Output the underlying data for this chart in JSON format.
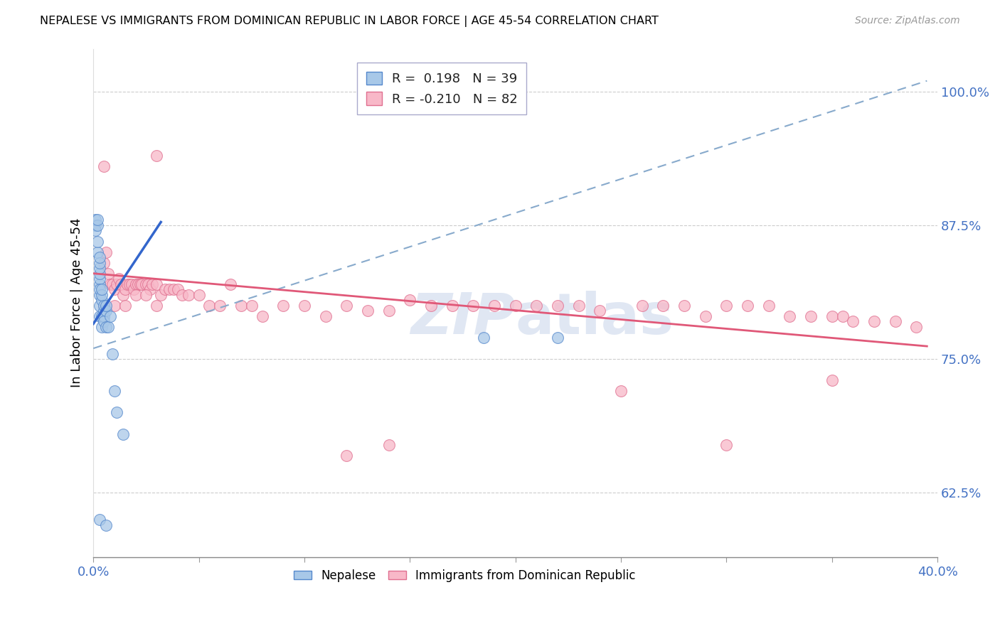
{
  "title": "NEPALESE VS IMMIGRANTS FROM DOMINICAN REPUBLIC IN LABOR FORCE | AGE 45-54 CORRELATION CHART",
  "source": "Source: ZipAtlas.com",
  "ylabel": "In Labor Force | Age 45-54",
  "ytick_labels": [
    "62.5%",
    "75.0%",
    "87.5%",
    "100.0%"
  ],
  "ytick_values": [
    0.625,
    0.75,
    0.875,
    1.0
  ],
  "xmin": 0.0,
  "xmax": 0.4,
  "ymin": 0.565,
  "ymax": 1.04,
  "legend_line1": "R =  0.198   N = 39",
  "legend_line2": "R = -0.210   N = 82",
  "color_blue_fill": "#a8c8e8",
  "color_blue_edge": "#5588cc",
  "color_pink_fill": "#f8b8c8",
  "color_pink_edge": "#e07090",
  "color_blue_line": "#3366cc",
  "color_pink_line": "#e05878",
  "color_dashed": "#88aacc",
  "color_axis_blue": "#4472c4",
  "color_grid": "#cccccc",
  "watermark_color": "#ccd8ec",
  "nepalese_x": [
    0.001,
    0.001,
    0.001,
    0.002,
    0.002,
    0.002,
    0.002,
    0.003,
    0.003,
    0.003,
    0.003,
    0.003,
    0.003,
    0.003,
    0.003,
    0.003,
    0.003,
    0.004,
    0.004,
    0.004,
    0.004,
    0.004,
    0.005,
    0.005,
    0.005,
    0.005,
    0.006,
    0.006,
    0.006,
    0.007,
    0.008,
    0.009,
    0.01,
    0.011,
    0.014,
    0.185,
    0.22,
    0.003,
    0.006
  ],
  "nepalese_y": [
    0.875,
    0.88,
    0.87,
    0.875,
    0.88,
    0.85,
    0.86,
    0.82,
    0.825,
    0.83,
    0.835,
    0.84,
    0.845,
    0.81,
    0.815,
    0.79,
    0.8,
    0.805,
    0.81,
    0.815,
    0.79,
    0.78,
    0.795,
    0.8,
    0.79,
    0.785,
    0.795,
    0.8,
    0.78,
    0.78,
    0.79,
    0.755,
    0.72,
    0.7,
    0.68,
    0.77,
    0.77,
    0.6,
    0.595
  ],
  "dominican_x": [
    0.005,
    0.006,
    0.007,
    0.008,
    0.009,
    0.01,
    0.011,
    0.012,
    0.013,
    0.014,
    0.015,
    0.016,
    0.017,
    0.018,
    0.019,
    0.02,
    0.021,
    0.022,
    0.023,
    0.025,
    0.026,
    0.027,
    0.028,
    0.03,
    0.032,
    0.034,
    0.036,
    0.038,
    0.04,
    0.042,
    0.045,
    0.05,
    0.055,
    0.06,
    0.065,
    0.07,
    0.075,
    0.08,
    0.09,
    0.1,
    0.11,
    0.12,
    0.13,
    0.14,
    0.15,
    0.16,
    0.17,
    0.18,
    0.19,
    0.2,
    0.21,
    0.22,
    0.23,
    0.24,
    0.26,
    0.27,
    0.28,
    0.29,
    0.3,
    0.31,
    0.32,
    0.33,
    0.34,
    0.35,
    0.355,
    0.36,
    0.37,
    0.38,
    0.39,
    0.005,
    0.01,
    0.015,
    0.02,
    0.025,
    0.03,
    0.12,
    0.14,
    0.25,
    0.3,
    0.35,
    0.005,
    0.03
  ],
  "dominican_y": [
    0.84,
    0.85,
    0.83,
    0.82,
    0.82,
    0.815,
    0.82,
    0.825,
    0.82,
    0.81,
    0.815,
    0.82,
    0.82,
    0.82,
    0.815,
    0.82,
    0.82,
    0.82,
    0.82,
    0.82,
    0.82,
    0.815,
    0.82,
    0.82,
    0.81,
    0.815,
    0.815,
    0.815,
    0.815,
    0.81,
    0.81,
    0.81,
    0.8,
    0.8,
    0.82,
    0.8,
    0.8,
    0.79,
    0.8,
    0.8,
    0.79,
    0.8,
    0.795,
    0.795,
    0.805,
    0.8,
    0.8,
    0.8,
    0.8,
    0.8,
    0.8,
    0.8,
    0.8,
    0.795,
    0.8,
    0.8,
    0.8,
    0.79,
    0.8,
    0.8,
    0.8,
    0.79,
    0.79,
    0.79,
    0.79,
    0.785,
    0.785,
    0.785,
    0.78,
    0.8,
    0.8,
    0.8,
    0.81,
    0.81,
    0.8,
    0.66,
    0.67,
    0.72,
    0.67,
    0.73,
    0.93,
    0.94
  ],
  "blue_line_x0": 0.0,
  "blue_line_y0": 0.783,
  "blue_line_x1": 0.032,
  "blue_line_y1": 0.878,
  "pink_line_x0": 0.0,
  "pink_line_y0": 0.83,
  "pink_line_x1": 0.395,
  "pink_line_y1": 0.762,
  "dash_line_x0": 0.0,
  "dash_line_y0": 0.76,
  "dash_line_x1": 0.395,
  "dash_line_y1": 1.01
}
